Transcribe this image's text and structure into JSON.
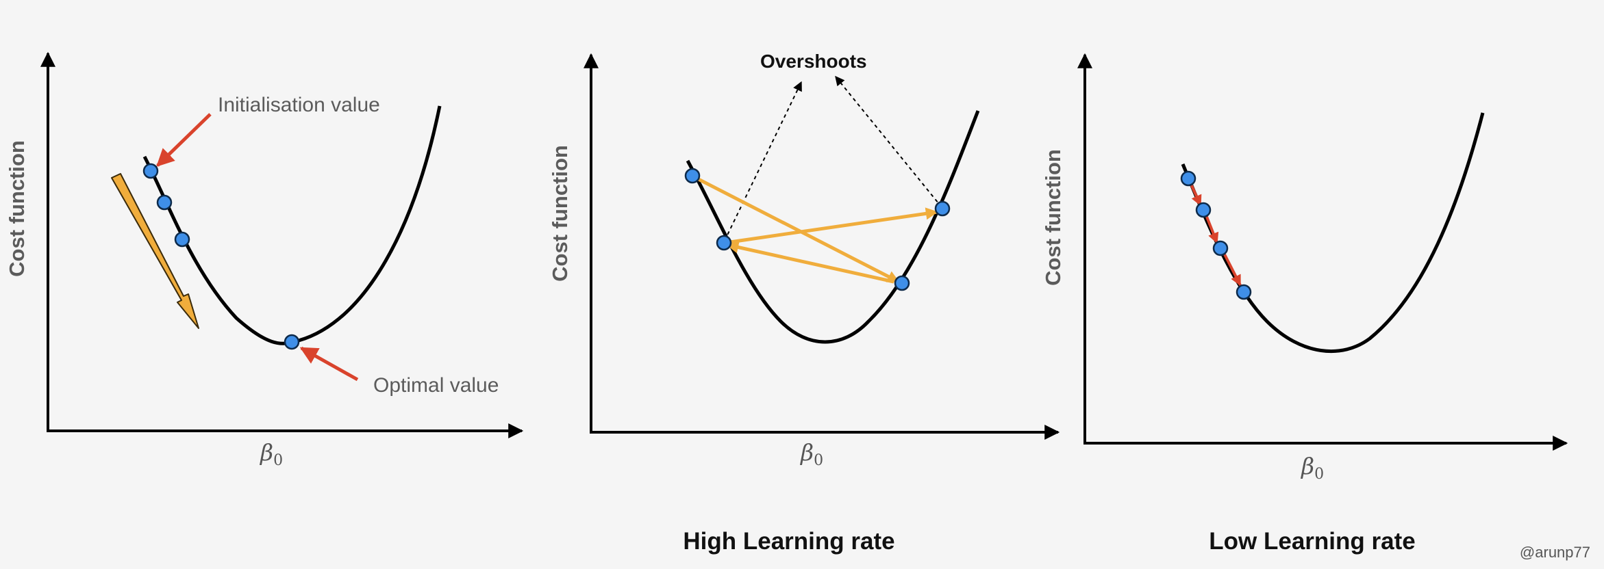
{
  "colors": {
    "axis": "#000000",
    "curve": "#000000",
    "point_fill": "#3f8fe8",
    "point_stroke": "#0d2a4a",
    "callout_arrow": "#d9432c",
    "step_arrow": "#f0ad3c",
    "step_arrow_outline": "#3a2a0a",
    "small_step_arrow": "#d9432c",
    "label_gray": "#5b5b5b"
  },
  "panels": [
    {
      "ylabel": "Cost function",
      "xlabel_symbol": "β",
      "xlabel_subscript": "0",
      "caption": "",
      "annotations": {
        "initialisation": "Initialisation value",
        "optimal": "Optimal value"
      }
    },
    {
      "ylabel": "Cost function",
      "xlabel_symbol": "β",
      "xlabel_subscript": "0",
      "caption": "High Learning rate",
      "annotations": {
        "overshoots": "Overshoots"
      }
    },
    {
      "ylabel": "Cost function",
      "xlabel_symbol": "β",
      "xlabel_subscript": "0",
      "caption": "Low Learning rate"
    }
  ],
  "credit": "@arunp77"
}
